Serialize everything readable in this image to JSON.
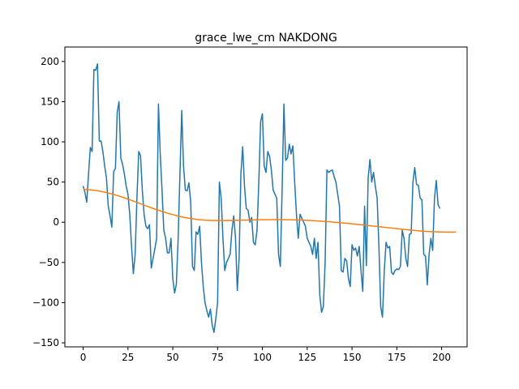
{
  "chart_data": {
    "type": "line",
    "title": "grace_lwe_cm NAKDONG",
    "xlabel": "",
    "ylabel": "",
    "xlim": [
      -10.2,
      214.2
    ],
    "ylim": [
      -155,
      218
    ],
    "xticks": [
      0,
      25,
      50,
      75,
      100,
      125,
      150,
      175,
      200
    ],
    "yticks": [
      -150,
      -100,
      -50,
      0,
      50,
      100,
      150,
      200
    ],
    "grid": false,
    "legend": "none",
    "colors": {
      "series_1": "#1f77b4",
      "series_2": "#ff7f0e"
    },
    "series": [
      {
        "values": [
          45,
          37,
          25,
          60,
          93,
          88,
          190,
          189,
          197,
          101,
          101,
          88,
          70,
          55,
          20,
          8,
          -6,
          63,
          67,
          137,
          150,
          80,
          72,
          60,
          45,
          35,
          10,
          -30,
          -64,
          -40,
          30,
          88,
          83,
          40,
          10,
          -5,
          -8,
          -3,
          -57,
          -45,
          -33,
          -20,
          147,
          85,
          40,
          -10,
          -20,
          -38,
          -38,
          -20,
          -70,
          -88,
          -77,
          -20,
          60,
          139,
          70,
          40,
          39,
          49,
          25,
          -55,
          -60,
          -12,
          -15,
          -5,
          -50,
          -80,
          -100,
          -110,
          -118,
          -108,
          -128,
          -137,
          -120,
          -100,
          50,
          30,
          -20,
          -60,
          -50,
          -45,
          -40,
          -10,
          8,
          -20,
          -85,
          -45,
          60,
          94,
          45,
          17,
          15,
          0,
          6,
          -25,
          -28,
          -10,
          50,
          125,
          135,
          70,
          62,
          88,
          82,
          65,
          40,
          35,
          30,
          -40,
          -55,
          40,
          147,
          77,
          80,
          97,
          85,
          95,
          50,
          10,
          -20,
          10,
          5,
          0,
          -5,
          -20,
          -25,
          -30,
          -40,
          -20,
          -45,
          -25,
          -90,
          -112,
          -105,
          -50,
          65,
          62,
          64,
          65,
          57,
          50,
          35,
          20,
          -60,
          -62,
          -45,
          -48,
          -70,
          -80,
          -28,
          -35,
          -32,
          -42,
          -30,
          -60,
          -86,
          20,
          -54,
          55,
          78,
          50,
          62,
          45,
          30,
          -30,
          -105,
          -118,
          -60,
          -25,
          -32,
          -30,
          -62,
          -65,
          -60,
          -58,
          -59,
          -55,
          -10,
          -20,
          -45,
          -55,
          -15,
          -14,
          50,
          68,
          47,
          46,
          30,
          28,
          -40,
          -42,
          -78,
          -40,
          -20,
          -35,
          30,
          52,
          22,
          17
        ],
        "style": "solid"
      },
      {
        "values": [
          41,
          40.9,
          40.7,
          40.5,
          40.3,
          40.1,
          39.8,
          39.5,
          39.2,
          38.8,
          38.4,
          37.9,
          37.4,
          36.9,
          36.4,
          35.8,
          35.2,
          34.6,
          33.9,
          33.3,
          32.6,
          31.8,
          31.1,
          30.4,
          29.6,
          28.8,
          28,
          27.2,
          26.4,
          25.5,
          24.7,
          23.9,
          23,
          22.2,
          21.4,
          20.5,
          19.7,
          18.9,
          18.1,
          17.3,
          16.5,
          15.7,
          15,
          14.2,
          13.5,
          12.8,
          12.1,
          11.4,
          10.7,
          10.1,
          9.5,
          8.9,
          8.3,
          7.7,
          7.2,
          6.7,
          6.2,
          5.8,
          5.4,
          5,
          4.6,
          4.3,
          4,
          3.7,
          3.4,
          3.2,
          3,
          2.8,
          2.6,
          2.5,
          2.4,
          2.3,
          2.2,
          2.1,
          2.1,
          2.1,
          2.1,
          2.1,
          2.1,
          2.1,
          2.1,
          2.2,
          2.2,
          2.3,
          2.3,
          2.4,
          2.4,
          2.5,
          2.5,
          2.6,
          2.6,
          2.7,
          2.8,
          2.8,
          2.9,
          2.9,
          3,
          3,
          3.1,
          3.1,
          3.1,
          3.2,
          3.2,
          3.2,
          3.2,
          3.3,
          3.3,
          3.3,
          3.3,
          3.3,
          3.3,
          3.2,
          3.2,
          3.2,
          3.2,
          3.1,
          3.1,
          3,
          3,
          2.9,
          2.8,
          2.8,
          2.7,
          2.6,
          2.5,
          2.4,
          2.3,
          2.2,
          2,
          1.9,
          1.8,
          1.6,
          1.5,
          1.3,
          1.2,
          1,
          0.8,
          0.7,
          0.5,
          0.3,
          0.1,
          -0.1,
          -0.3,
          -0.5,
          -0.7,
          -0.9,
          -1.1,
          -1.3,
          -1.5,
          -1.7,
          -2,
          -2.2,
          -2.4,
          -2.6,
          -2.9,
          -3.1,
          -3.3,
          -3.6,
          -3.8,
          -4,
          -4.3,
          -4.5,
          -4.8,
          -5,
          -5.2,
          -5.5,
          -5.7,
          -6,
          -6.2,
          -6.5,
          -6.7,
          -7,
          -7.2,
          -7.5,
          -7.7,
          -8,
          -8.2,
          -8.4,
          -8.7,
          -8.9,
          -9.1,
          -9.4,
          -9.6,
          -9.8,
          -10,
          -10.2,
          -10.4,
          -10.6,
          -10.8,
          -11,
          -11.2,
          -11.3,
          -11.5,
          -11.6,
          -11.7,
          -11.8,
          -11.9,
          -12,
          -12,
          -12.1,
          -12.1,
          -12.1,
          -12.2,
          -12.2,
          -12.2,
          -12.2,
          -12.2,
          -12.2,
          -12.2
        ],
        "style": "solid"
      }
    ]
  }
}
